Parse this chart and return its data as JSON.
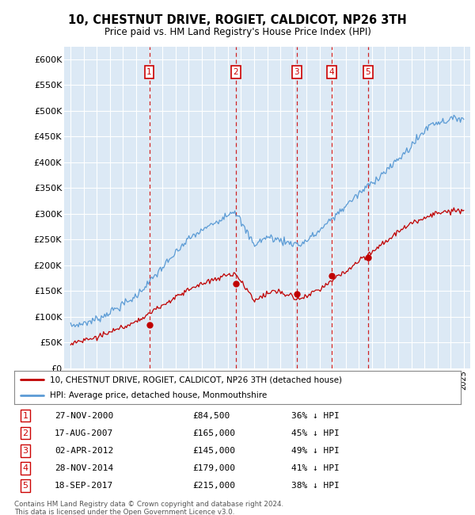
{
  "title": "10, CHESTNUT DRIVE, ROGIET, CALDICOT, NP26 3TH",
  "subtitle": "Price paid vs. HM Land Registry's House Price Index (HPI)",
  "background_color": "#ffffff",
  "plot_bg_color": "#dce9f5",
  "grid_color": "#ffffff",
  "ylim": [
    0,
    625000
  ],
  "yticks": [
    0,
    50000,
    100000,
    150000,
    200000,
    250000,
    300000,
    350000,
    400000,
    450000,
    500000,
    550000,
    600000
  ],
  "ytick_labels": [
    "£0",
    "£50K",
    "£100K",
    "£150K",
    "£200K",
    "£250K",
    "£300K",
    "£350K",
    "£400K",
    "£450K",
    "£500K",
    "£550K",
    "£600K"
  ],
  "hpi_color": "#5b9bd5",
  "price_color": "#c00000",
  "vline_color": "#cc0000",
  "annotation_box_color": "#cc0000",
  "transactions": [
    {
      "date_num": 2001.0,
      "price": 84500,
      "label": "1"
    },
    {
      "date_num": 2007.6,
      "price": 165000,
      "label": "2"
    },
    {
      "date_num": 2012.25,
      "price": 145000,
      "label": "3"
    },
    {
      "date_num": 2014.9,
      "price": 179000,
      "label": "4"
    },
    {
      "date_num": 2017.7,
      "price": 215000,
      "label": "5"
    }
  ],
  "table_rows": [
    {
      "num": "1",
      "date": "27-NOV-2000",
      "price": "£84,500",
      "pct": "36% ↓ HPI"
    },
    {
      "num": "2",
      "date": "17-AUG-2007",
      "price": "£165,000",
      "pct": "45% ↓ HPI"
    },
    {
      "num": "3",
      "date": "02-APR-2012",
      "price": "£145,000",
      "pct": "49% ↓ HPI"
    },
    {
      "num": "4",
      "date": "28-NOV-2014",
      "price": "£179,000",
      "pct": "41% ↓ HPI"
    },
    {
      "num": "5",
      "date": "18-SEP-2017",
      "price": "£215,000",
      "pct": "38% ↓ HPI"
    }
  ],
  "legend_entries": [
    "10, CHESTNUT DRIVE, ROGIET, CALDICOT, NP26 3TH (detached house)",
    "HPI: Average price, detached house, Monmouthshire"
  ],
  "footer": "Contains HM Land Registry data © Crown copyright and database right 2024.\nThis data is licensed under the Open Government Licence v3.0.",
  "xlim_start": 1994.5,
  "xlim_end": 2025.5
}
